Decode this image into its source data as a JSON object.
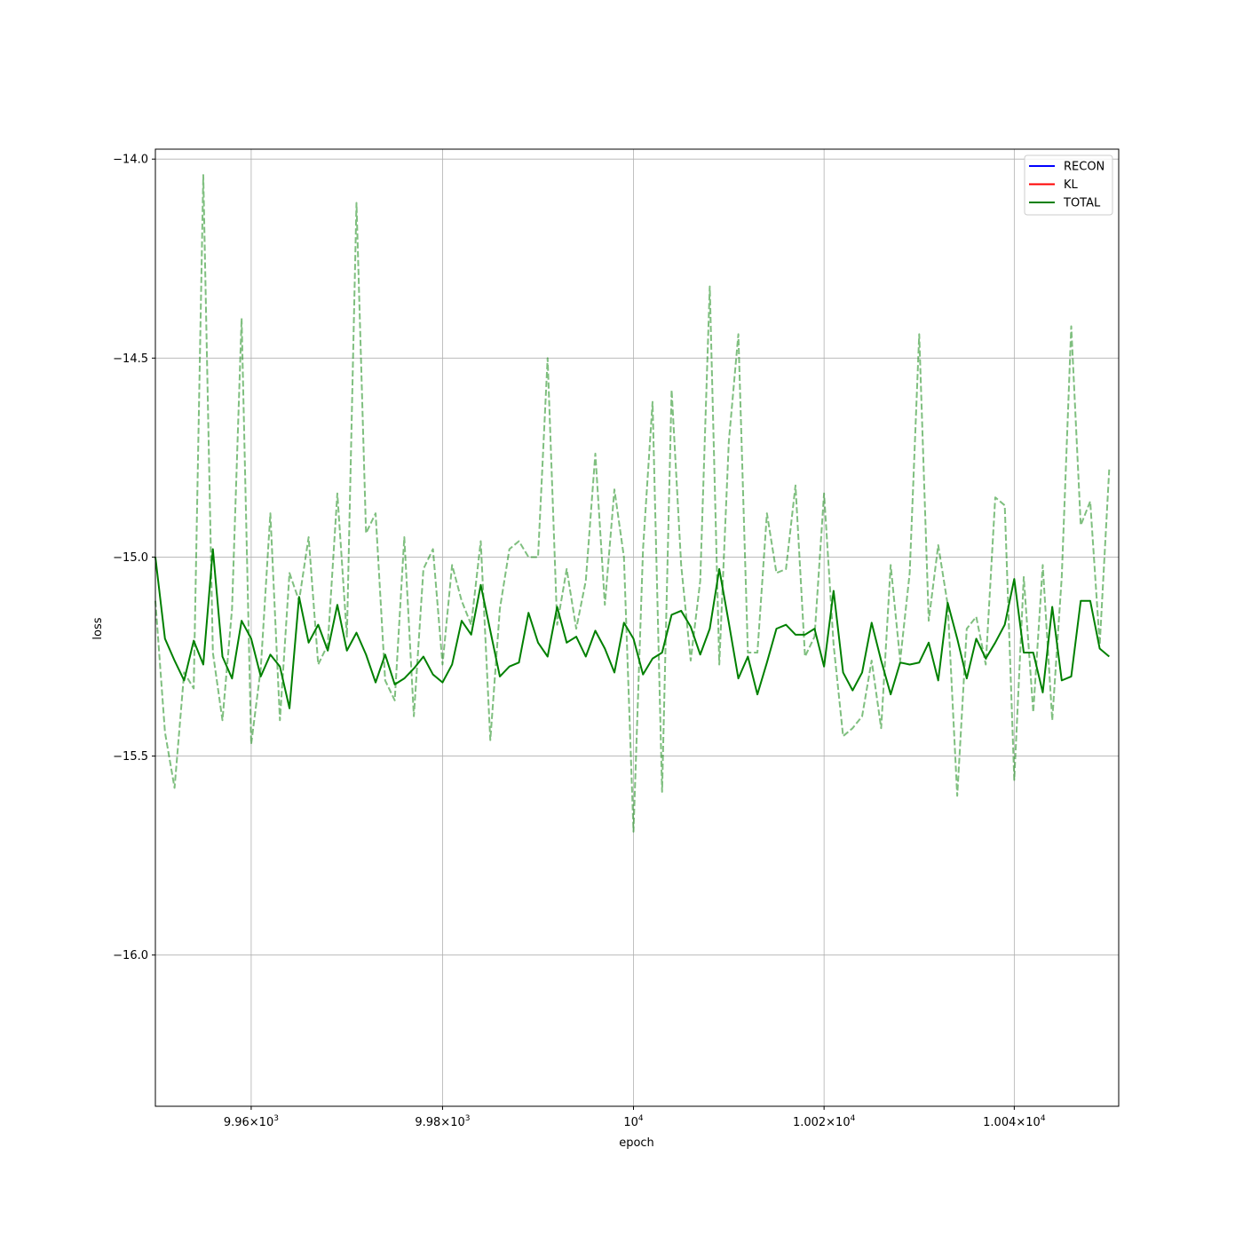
{
  "chart_data": {
    "type": "line",
    "title": "",
    "xlabel": "epoch",
    "ylabel": "loss",
    "xscale": "log",
    "xlim": [
      9950,
      10051
    ],
    "ylim": [
      -16.38,
      -13.975
    ],
    "grid": true,
    "legend_position": "top-right",
    "x_ticks": [
      {
        "value": 9960,
        "mantissa": "9.96",
        "exponent": "3"
      },
      {
        "value": 9980,
        "mantissa": "9.98",
        "exponent": "3"
      },
      {
        "value": 10000,
        "mantissa": "10",
        "exponent": "4"
      },
      {
        "value": 10020,
        "mantissa": "1.002",
        "exponent": "4"
      },
      {
        "value": 10040,
        "mantissa": "1.004",
        "exponent": "4"
      }
    ],
    "y_ticks": [
      {
        "value": -14.0,
        "label": "−14.0"
      },
      {
        "value": -14.5,
        "label": "−14.5"
      },
      {
        "value": -15.0,
        "label": "−15.0"
      },
      {
        "value": -15.5,
        "label": "−15.5"
      },
      {
        "value": -16.0,
        "label": "−16.0"
      }
    ],
    "series": [
      {
        "name": "RECON",
        "color": "#0000ff",
        "style": "solid",
        "x_start": 9950,
        "values": []
      },
      {
        "name": "KL",
        "color": "#ff0000",
        "style": "solid",
        "x_start": 9950,
        "values": []
      },
      {
        "name": "TOTAL",
        "color": "#008000",
        "style": "solid",
        "x_start": 9950,
        "values": [
          -15.0,
          -15.205,
          -15.26,
          -15.31,
          -15.21,
          -15.27,
          -14.98,
          -15.25,
          -15.305,
          -15.16,
          -15.205,
          -15.3,
          -15.245,
          -15.275,
          -15.38,
          -15.1,
          -15.215,
          -15.17,
          -15.235,
          -15.12,
          -15.235,
          -15.19,
          -15.245,
          -15.315,
          -15.245,
          -15.32,
          -15.305,
          -15.28,
          -15.25,
          -15.295,
          -15.315,
          -15.27,
          -15.16,
          -15.195,
          -15.07,
          -15.185,
          -15.3,
          -15.275,
          -15.265,
          -15.14,
          -15.215,
          -15.25,
          -15.125,
          -15.215,
          -15.2,
          -15.25,
          -15.185,
          -15.23,
          -15.29,
          -15.165,
          -15.205,
          -15.295,
          -15.255,
          -15.24,
          -15.145,
          -15.135,
          -15.175,
          -15.245,
          -15.18,
          -15.03,
          -15.165,
          -15.305,
          -15.25,
          -15.345,
          -15.265,
          -15.18,
          -15.17,
          -15.195,
          -15.195,
          -15.18,
          -15.275,
          -15.085,
          -15.29,
          -15.335,
          -15.29,
          -15.165,
          -15.26,
          -15.345,
          -15.265,
          -15.27,
          -15.265,
          -15.215,
          -15.31,
          -15.115,
          -15.205,
          -15.305,
          -15.205,
          -15.255,
          -15.215,
          -15.17,
          -15.055,
          -15.24,
          -15.24,
          -15.34,
          -15.125,
          -15.31,
          -15.3,
          -15.11,
          -15.11,
          -15.23,
          -15.25
        ]
      },
      {
        "name": "",
        "color": "#008000",
        "style": "dashed",
        "opacity": 0.5,
        "x_start": 9950,
        "values": [
          -15.11,
          -15.44,
          -15.58,
          -15.29,
          -15.33,
          -14.04,
          -15.24,
          -15.41,
          -15.13,
          -14.4,
          -15.47,
          -15.28,
          -14.89,
          -15.41,
          -15.04,
          -15.11,
          -14.95,
          -15.27,
          -15.22,
          -14.84,
          -15.2,
          -14.11,
          -14.94,
          -14.89,
          -15.31,
          -15.36,
          -14.95,
          -15.4,
          -15.03,
          -14.98,
          -15.27,
          -15.02,
          -15.11,
          -15.17,
          -14.96,
          -15.46,
          -15.13,
          -14.98,
          -14.96,
          -15.0,
          -15.0,
          -14.5,
          -15.17,
          -15.03,
          -15.18,
          -15.06,
          -14.74,
          -15.12,
          -14.83,
          -15.0,
          -15.69,
          -14.98,
          -14.61,
          -15.59,
          -14.58,
          -15.02,
          -15.26,
          -15.06,
          -14.32,
          -15.27,
          -14.71,
          -14.44,
          -15.24,
          -15.24,
          -14.89,
          -15.04,
          -15.03,
          -14.82,
          -15.25,
          -15.2,
          -14.84,
          -15.22,
          -15.45,
          -15.43,
          -15.4,
          -15.26,
          -15.43,
          -15.02,
          -15.26,
          -15.04,
          -14.44,
          -15.16,
          -14.97,
          -15.12,
          -15.6,
          -15.18,
          -15.15,
          -15.27,
          -14.85,
          -14.87,
          -15.56,
          -15.05,
          -15.39,
          -15.02,
          -15.41,
          -15.05,
          -14.42,
          -14.92,
          -14.86,
          -15.22,
          -14.78
        ]
      }
    ]
  }
}
